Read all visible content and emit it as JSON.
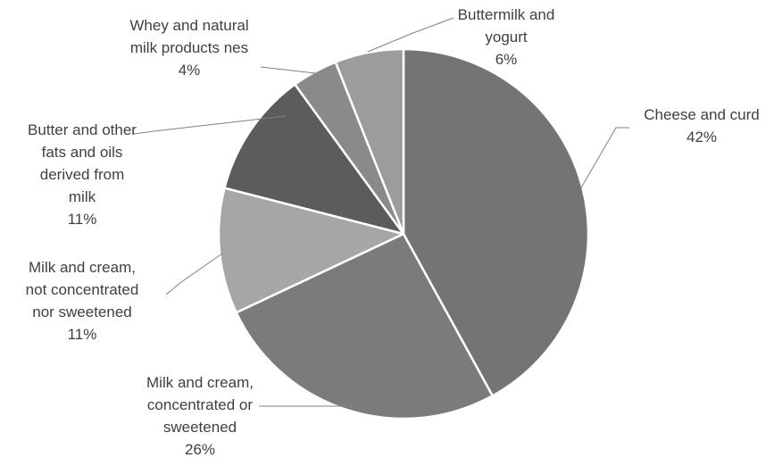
{
  "chart_data": {
    "type": "pie",
    "title": "",
    "start_angle_deg": 0,
    "direction": "clockwise",
    "slice_border_color": "#ffffff",
    "slices": [
      {
        "label_lines": [
          "Cheese and curd"
        ],
        "pct_text": "42%",
        "value": 42,
        "color": "#747474"
      },
      {
        "label_lines": [
          "Milk and cream,",
          "concentrated or",
          "sweetened"
        ],
        "pct_text": "26%",
        "value": 26,
        "color": "#7b7b7b"
      },
      {
        "label_lines": [
          "Milk and cream,",
          "not concentrated",
          "nor sweetened"
        ],
        "pct_text": "11%",
        "value": 11,
        "color": "#a6a6a6"
      },
      {
        "label_lines": [
          "Butter and other",
          "fats and oils",
          "derived from",
          "milk"
        ],
        "pct_text": "11%",
        "value": 11,
        "color": "#5c5c5c"
      },
      {
        "label_lines": [
          "Whey and natural",
          "milk products nes"
        ],
        "pct_text": "4%",
        "value": 4,
        "color": "#8a8a8a"
      },
      {
        "label_lines": [
          "Buttermilk and",
          "yogurt"
        ],
        "pct_text": "6%",
        "value": 6,
        "color": "#9c9c9c"
      }
    ]
  }
}
